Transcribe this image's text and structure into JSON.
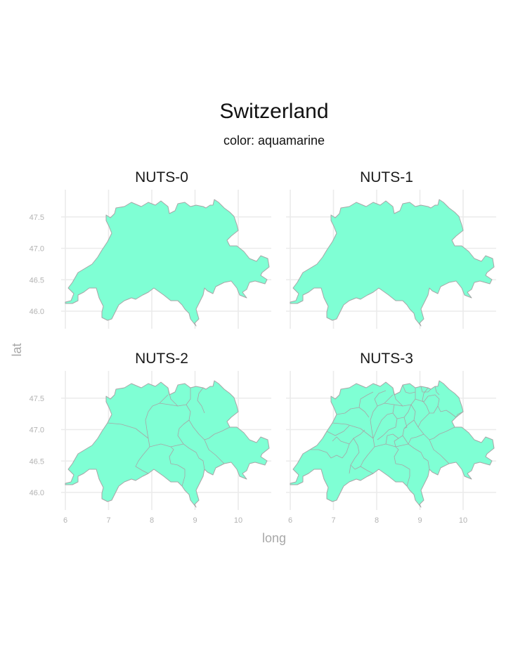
{
  "chart_data": {
    "type": "map",
    "title": "Switzerland",
    "subtitle": "color: aquamarine",
    "fill_color": "#7fffd4",
    "xlabel": "long",
    "ylabel": "lat",
    "xlim": [
      5.8,
      10.7
    ],
    "ylim": [
      45.75,
      47.9
    ],
    "x_ticks": [
      6,
      7,
      8,
      9,
      10
    ],
    "y_ticks": [
      46.0,
      46.5,
      47.0,
      47.5
    ],
    "x_tick_labels": [
      "6",
      "7",
      "8",
      "9",
      "10"
    ],
    "y_tick_labels": [
      "46.0",
      "46.5",
      "47.0",
      "47.5"
    ],
    "grid": true,
    "panels": [
      {
        "label": "NUTS-0",
        "level": 0
      },
      {
        "label": "NUTS-1",
        "level": 1
      },
      {
        "label": "NUTS-2",
        "level": 2
      },
      {
        "label": "NUTS-3",
        "level": 3
      }
    ]
  }
}
